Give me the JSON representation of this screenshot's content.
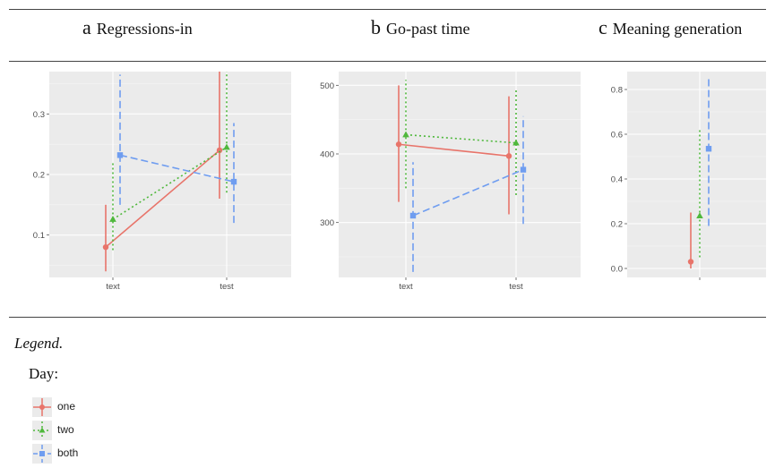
{
  "panels": [
    {
      "letter": "a",
      "title": "Regressions-in"
    },
    {
      "letter": "b",
      "title": "Go-past time"
    },
    {
      "letter": "c",
      "title": "Meaning generation"
    }
  ],
  "legend": {
    "heading": "Legend.",
    "title": "Day:",
    "items": [
      {
        "label": "one",
        "color": "#e8746a"
      },
      {
        "label": "two",
        "color": "#4fb83c"
      },
      {
        "label": "both",
        "color": "#6f9df0"
      }
    ]
  },
  "chart_data": [
    {
      "type": "line",
      "title": "Regressions-in",
      "categories": [
        "text",
        "test"
      ],
      "ylim": [
        0.03,
        0.37
      ],
      "yticks": [
        "0.1",
        "0.2",
        "0.3"
      ],
      "series": [
        {
          "name": "one",
          "values": [
            0.08,
            0.24
          ],
          "lower": [
            0.04,
            0.16
          ],
          "upper": [
            0.15,
            0.37
          ],
          "color": "#e8746a",
          "dash": "",
          "marker": "circle"
        },
        {
          "name": "two",
          "values": [
            0.126,
            0.245
          ],
          "lower": [
            0.075,
            0.17
          ],
          "upper": [
            0.22,
            0.37
          ],
          "color": "#4fb83c",
          "dash": "2,3",
          "marker": "triangle"
        },
        {
          "name": "both",
          "values": [
            0.232,
            0.188
          ],
          "lower": [
            0.15,
            0.12
          ],
          "upper": [
            0.365,
            0.285
          ],
          "color": "#6f9df0",
          "dash": "8,4",
          "marker": "square"
        }
      ]
    },
    {
      "type": "line",
      "title": "Go-past time",
      "categories": [
        "text",
        "test"
      ],
      "ylim": [
        220,
        520
      ],
      "yticks": [
        "300",
        "400",
        "500"
      ],
      "series": [
        {
          "name": "one",
          "values": [
            414,
            397
          ],
          "lower": [
            330,
            312
          ],
          "upper": [
            500,
            484
          ],
          "color": "#e8746a",
          "dash": "",
          "marker": "circle"
        },
        {
          "name": "two",
          "values": [
            428,
            416
          ],
          "lower": [
            350,
            340
          ],
          "upper": [
            508,
            494
          ],
          "color": "#4fb83c",
          "dash": "2,3",
          "marker": "triangle"
        },
        {
          "name": "both",
          "values": [
            310,
            377
          ],
          "lower": [
            228,
            298
          ],
          "upper": [
            388,
            455
          ],
          "color": "#6f9df0",
          "dash": "8,4",
          "marker": "square"
        }
      ]
    },
    {
      "type": "scatter",
      "title": "Meaning generation",
      "categories": [
        ""
      ],
      "ylim": [
        -0.04,
        0.88
      ],
      "yticks": [
        "0.0",
        "0.2",
        "0.4",
        "0.6",
        "0.8"
      ],
      "series": [
        {
          "name": "one",
          "values": [
            0.03
          ],
          "lower": [
            0.0
          ],
          "upper": [
            0.25
          ],
          "color": "#e8746a",
          "dash": "",
          "marker": "circle"
        },
        {
          "name": "two",
          "values": [
            0.235
          ],
          "lower": [
            0.05
          ],
          "upper": [
            0.62
          ],
          "color": "#4fb83c",
          "dash": "2,3",
          "marker": "triangle"
        },
        {
          "name": "both",
          "values": [
            0.535
          ],
          "lower": [
            0.19
          ],
          "upper": [
            0.85
          ],
          "color": "#6f9df0",
          "dash": "8,4",
          "marker": "square"
        }
      ]
    }
  ]
}
